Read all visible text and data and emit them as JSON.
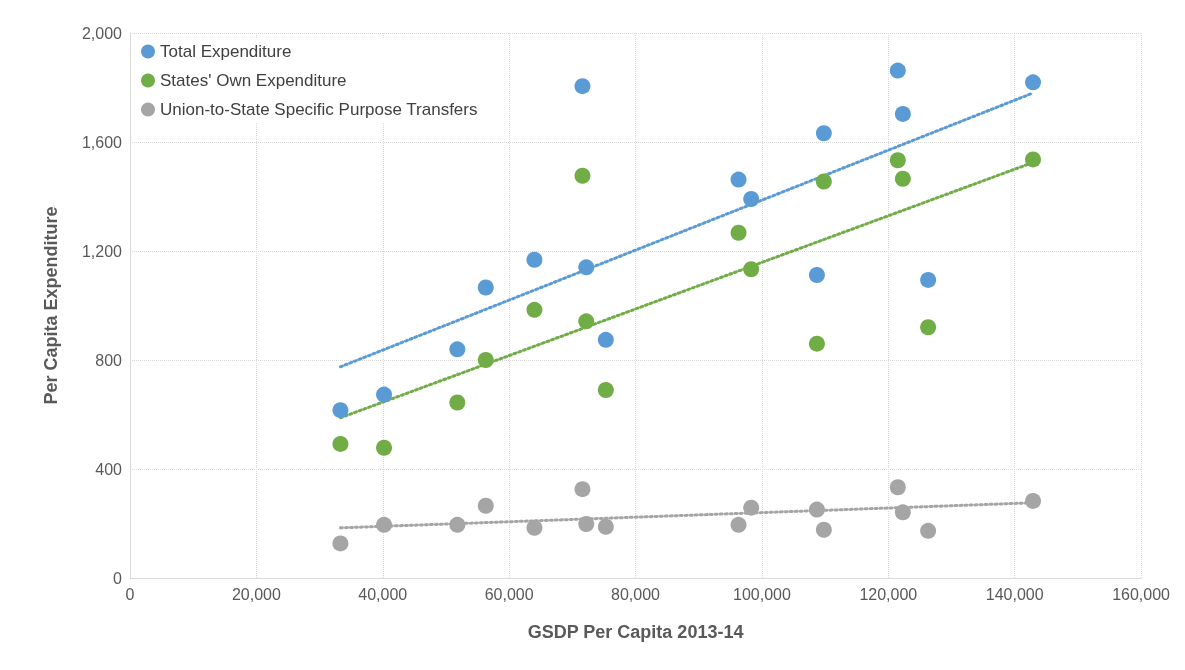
{
  "chart_data": {
    "type": "scatter",
    "xlabel": "GSDP Per Capita 2013-14",
    "ylabel": "Per Capita Expenditure",
    "xlim": [
      0,
      160000
    ],
    "xticks": [
      0,
      {
        "value": 20000,
        "label": "20,000"
      },
      {
        "value": 40000,
        "label": "40,000"
      },
      {
        "value": 60000,
        "label": "60,000"
      },
      {
        "value": 80000,
        "label": "80,000"
      },
      {
        "value": 100000,
        "label": "100,000"
      },
      {
        "value": 120000,
        "label": "120,000"
      },
      {
        "value": 140000,
        "label": "140,000"
      },
      {
        "value": 160000,
        "label": "160,000"
      }
    ],
    "ylim": [
      0,
      2000
    ],
    "yticks": [
      0,
      400,
      800,
      {
        "value": 1200,
        "label": "1,200"
      },
      {
        "value": 1600,
        "label": "1,600"
      },
      {
        "value": 2000,
        "label": "2,000"
      }
    ],
    "grid": true,
    "legend": "top left",
    "marker": "circle",
    "series": [
      {
        "name": "Total Expenditure",
        "color": "#5b9bd5",
        "x": [
          33300,
          40200,
          51800,
          56300,
          64000,
          71600,
          72200,
          75300,
          96300,
          98300,
          109800,
          108700,
          121500,
          122300,
          126300,
          142900
        ],
        "values": [
          616,
          673,
          839,
          1066,
          1168,
          1805,
          1140,
          874,
          1462,
          1391,
          1632,
          1112,
          1862,
          1703,
          1094,
          1819
        ]
      },
      {
        "name": "States' Own Expenditure",
        "color": "#70ad47",
        "x": [
          33300,
          40200,
          51800,
          56300,
          64000,
          71600,
          72200,
          75300,
          96300,
          98300,
          109800,
          108700,
          121500,
          122300,
          126300,
          142900
        ],
        "values": [
          492,
          478,
          644,
          800,
          984,
          1476,
          942,
          690,
          1267,
          1133,
          1455,
          860,
          1533,
          1465,
          920,
          1536
        ]
      },
      {
        "name": "Union-to-State Specific Purpose Transfers",
        "color": "#a5a5a5",
        "x": [
          33300,
          40200,
          51800,
          56300,
          64000,
          71600,
          72200,
          75300,
          96300,
          98300,
          109800,
          108700,
          121500,
          122300,
          126300,
          142900
        ],
        "values": [
          127,
          195,
          195,
          265,
          184,
          326,
          198,
          188,
          195,
          258,
          177,
          251,
          333,
          241,
          173,
          283
        ]
      },
      {
        "type": "line",
        "color": "#5b9bd5",
        "line_style": "dotted",
        "marker": "none",
        "x": [
          33300,
          142900
        ],
        "values": [
          775,
          1780
        ]
      },
      {
        "type": "line",
        "color": "#70ad47",
        "line_style": "dotted",
        "marker": "none",
        "x": [
          33300,
          142900
        ],
        "values": [
          588,
          1525
        ]
      },
      {
        "type": "line",
        "color": "#a5a5a5",
        "line_style": "dotted",
        "marker": "none",
        "x": [
          33300,
          142900
        ],
        "values": [
          184,
          276
        ]
      }
    ]
  }
}
